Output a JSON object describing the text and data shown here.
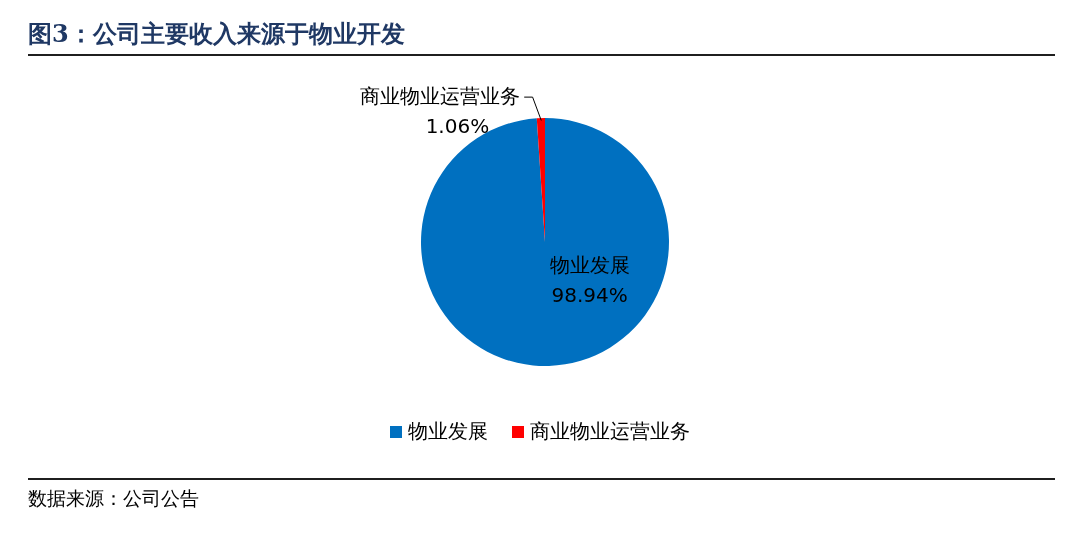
{
  "chart_data": {
    "type": "pie",
    "title": "图3：公司主要收入来源于物业开发",
    "categories": [
      "物业发展",
      "商业物业运营业务"
    ],
    "values": [
      98.94,
      1.06
    ],
    "colors": [
      "#0070c0",
      "#ff0000"
    ],
    "value_labels": [
      "98.94%",
      "1.06%"
    ],
    "legend": "bottom",
    "annotations": [
      "数据来源：公司公告"
    ]
  }
}
